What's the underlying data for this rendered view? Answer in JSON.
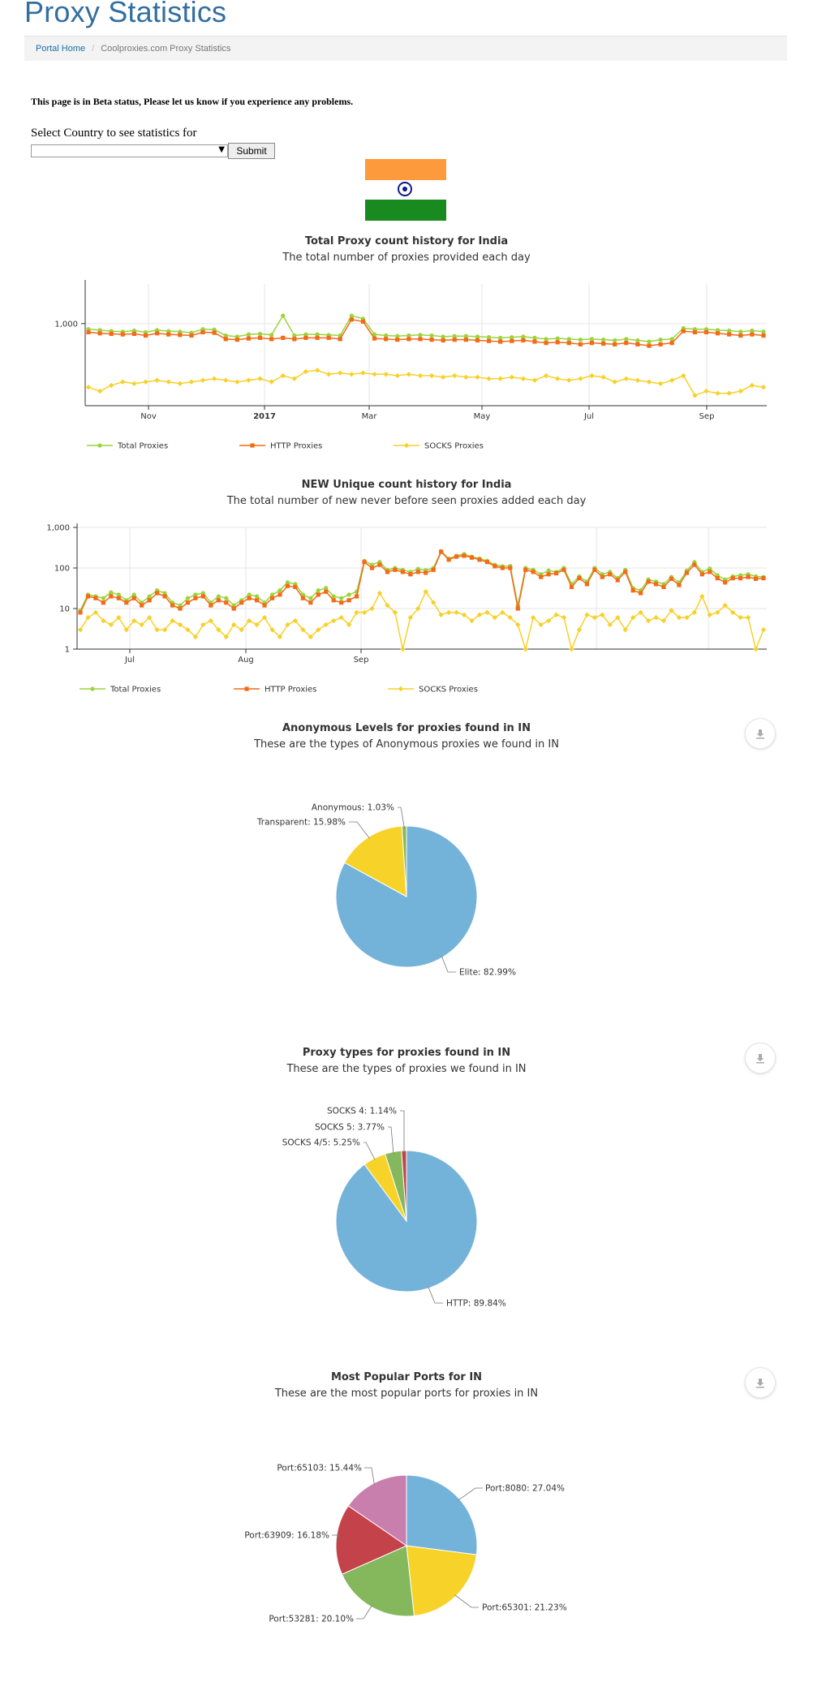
{
  "page": {
    "title": "Proxy Statistics",
    "breadcrumb": [
      "Portal Home",
      "Coolproxies.com Proxy Statistics"
    ],
    "beta_notice": "This page is in Beta status, Please let us know if you experience any problems.",
    "country_label": "Select Country to see statistics for",
    "country_value": "",
    "submit_label": "Submit"
  },
  "colors": {
    "total": "#9ad43a",
    "http": "#f46a16",
    "socks": "#f7d12a",
    "blue": "#74b3d9",
    "yellow": "#f7d32a",
    "green": "#85b85c",
    "red": "#c4434a",
    "pink": "#c97fae"
  },
  "chart_data": [
    {
      "type": "line",
      "title": "Total Proxy count history for India",
      "subtitle": "The total number of proxies provided each day",
      "y_scale": "log",
      "y_ticks": [
        "1,000"
      ],
      "x_ticks": [
        "Nov",
        "2017",
        "Mar",
        "May",
        "Jul",
        "Sep"
      ],
      "x_range": [
        "2016-09-20",
        "2017-10-15"
      ],
      "grid": true,
      "legend": [
        "Total Proxies",
        "HTTP Proxies",
        "SOCKS Proxies"
      ],
      "legend_position": "bottom-left",
      "series": [
        {
          "name": "Total Proxies",
          "values": [
            880,
            860,
            840,
            830,
            850,
            820,
            860,
            840,
            830,
            810,
            880,
            870,
            760,
            740,
            780,
            790,
            770,
            1200,
            760,
            780,
            780,
            770,
            760,
            1200,
            1120,
            780,
            760,
            750,
            760,
            770,
            760,
            740,
            750,
            750,
            740,
            730,
            720,
            730,
            740,
            720,
            700,
            710,
            700,
            690,
            700,
            690,
            680,
            700,
            680,
            660,
            690,
            700,
            900,
            880,
            880,
            860,
            850,
            830,
            850,
            830
          ]
        },
        {
          "name": "HTTP Proxies",
          "values": [
            820,
            800,
            790,
            780,
            790,
            760,
            800,
            780,
            770,
            760,
            820,
            810,
            700,
            690,
            710,
            720,
            700,
            720,
            700,
            720,
            720,
            720,
            700,
            1100,
            1050,
            710,
            700,
            690,
            700,
            700,
            690,
            680,
            690,
            690,
            680,
            670,
            660,
            670,
            680,
            660,
            640,
            650,
            640,
            620,
            640,
            630,
            620,
            640,
            620,
            600,
            620,
            640,
            840,
            820,
            820,
            800,
            780,
            760,
            780,
            760
          ]
        },
        {
          "name": "SOCKS Proxies",
          "values": [
            230,
            210,
            240,
            260,
            250,
            260,
            270,
            260,
            250,
            260,
            270,
            280,
            270,
            260,
            270,
            280,
            260,
            300,
            280,
            330,
            340,
            310,
            320,
            310,
            320,
            310,
            310,
            300,
            310,
            300,
            300,
            290,
            300,
            290,
            290,
            280,
            280,
            290,
            280,
            270,
            300,
            280,
            270,
            280,
            300,
            290,
            260,
            280,
            270,
            260,
            250,
            270,
            300,
            190,
            210,
            200,
            200,
            210,
            240,
            230
          ]
        }
      ]
    },
    {
      "type": "line",
      "title": "NEW Unique count history for India",
      "subtitle": "The total number of new never before seen proxies added each day",
      "y_scale": "log",
      "y_ticks": [
        "1",
        "10",
        "100",
        "1,000"
      ],
      "x_ticks": [
        "Jul",
        "Aug",
        "Sep"
      ],
      "x_range": [
        "2017-06-25",
        "2017-10-15"
      ],
      "grid": true,
      "legend": [
        "Total Proxies",
        "HTTP Proxies",
        "SOCKS Proxies"
      ],
      "legend_position": "bottom-left",
      "series": [
        {
          "name": "Total Proxies",
          "values": [
            9,
            22,
            20,
            18,
            25,
            22,
            16,
            22,
            14,
            20,
            28,
            24,
            14,
            12,
            18,
            22,
            24,
            14,
            20,
            18,
            12,
            16,
            22,
            20,
            14,
            22,
            28,
            44,
            40,
            22,
            18,
            28,
            32,
            20,
            18,
            22,
            26,
            150,
            120,
            140,
            90,
            100,
            90,
            80,
            95,
            88,
            100,
            260,
            170,
            200,
            220,
            190,
            170,
            150,
            120,
            110,
            112,
            12,
            100,
            90,
            70,
            86,
            80,
            100,
            40,
            62,
            46,
            100,
            70,
            80,
            56,
            90,
            32,
            28,
            52,
            46,
            40,
            60,
            44,
            86,
            140,
            80,
            96,
            66,
            52,
            62,
            66,
            70,
            62,
            60
          ]
        },
        {
          "name": "HTTP Proxies",
          "values": [
            8,
            20,
            18,
            14,
            20,
            18,
            14,
            18,
            12,
            16,
            24,
            20,
            12,
            10,
            14,
            18,
            20,
            12,
            16,
            14,
            10,
            14,
            18,
            16,
            12,
            18,
            22,
            36,
            34,
            18,
            14,
            22,
            26,
            16,
            14,
            16,
            20,
            140,
            100,
            120,
            80,
            90,
            80,
            70,
            80,
            76,
            90,
            250,
            160,
            190,
            200,
            180,
            160,
            140,
            110,
            100,
            100,
            10,
            90,
            80,
            60,
            70,
            74,
            90,
            34,
            56,
            40,
            90,
            60,
            70,
            50,
            80,
            28,
            24,
            46,
            40,
            34,
            54,
            38,
            76,
            120,
            70,
            80,
            56,
            44,
            56,
            56,
            60,
            54,
            56
          ]
        },
        {
          "name": "SOCKS Proxies",
          "values": [
            3,
            6,
            8,
            5,
            4,
            6,
            3,
            5,
            4,
            6,
            3,
            3,
            5,
            4,
            3,
            2,
            4,
            5,
            3,
            2,
            4,
            3,
            5,
            4,
            6,
            3,
            2,
            4,
            5,
            3,
            2,
            3,
            4,
            5,
            6,
            4,
            8,
            8,
            10,
            24,
            12,
            8,
            1,
            6,
            10,
            26,
            14,
            7,
            8,
            8,
            7,
            5,
            7,
            8,
            6,
            8,
            6,
            4,
            1,
            6,
            4,
            5,
            7,
            6,
            1,
            3,
            7,
            6,
            7,
            4,
            6,
            3,
            6,
            8,
            5,
            6,
            5,
            9,
            6,
            6,
            8,
            20,
            7,
            8,
            12,
            8,
            6,
            6,
            1,
            3
          ]
        }
      ]
    },
    {
      "type": "pie",
      "title": "Anonymous Levels for proxies found in IN",
      "subtitle": "These are the types of Anonymous proxies we found in IN",
      "slices": [
        {
          "label": "Elite: 82.99%",
          "value": 82.99
        },
        {
          "label": "Transparent: 15.98%",
          "value": 15.98
        },
        {
          "label": "Anonymous: 1.03%",
          "value": 1.03
        }
      ]
    },
    {
      "type": "pie",
      "title": "Proxy types for proxies found in IN",
      "subtitle": "These are the types of proxies we found in IN",
      "slices": [
        {
          "label": "HTTP: 89.84%",
          "value": 89.84
        },
        {
          "label": "SOCKS 4/5: 5.25%",
          "value": 5.25
        },
        {
          "label": "SOCKS 5: 3.77%",
          "value": 3.77
        },
        {
          "label": "SOCKS 4: 1.14%",
          "value": 1.14
        }
      ]
    },
    {
      "type": "pie",
      "title": "Most Popular Ports for IN",
      "subtitle": "These are the most popular ports for proxies in IN",
      "slices": [
        {
          "label": "Port:8080: 27.04%",
          "value": 27.04
        },
        {
          "label": "Port:65301: 21.23%",
          "value": 21.23
        },
        {
          "label": "Port:53281: 20.10%",
          "value": 20.1
        },
        {
          "label": "Port:63909: 16.18%",
          "value": 16.18
        },
        {
          "label": "Port:65103: 15.44%",
          "value": 15.44
        }
      ]
    }
  ]
}
